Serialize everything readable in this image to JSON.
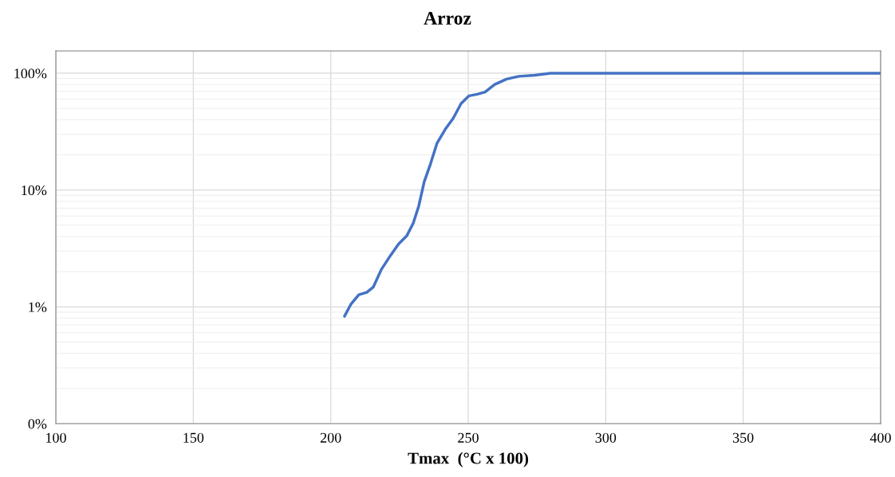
{
  "chart_data": {
    "type": "line",
    "title": "Arroz",
    "xlabel": "Tmax  (°C x 100)",
    "x": [
      205,
      207.3,
      210.2,
      213.1,
      215.5,
      218.4,
      221.8,
      224.7,
      227.6,
      230,
      232,
      234,
      236.3,
      238.6,
      241.6,
      244.5,
      247.4,
      250.3,
      253.2,
      256.1,
      259.6,
      263.9,
      268.3,
      274.1,
      279.9,
      400
    ],
    "series": [
      {
        "color": "#4472c4",
        "values": [
          0.83,
          1.05,
          1.27,
          1.33,
          1.48,
          2.09,
          2.77,
          3.46,
          4.04,
          5.2,
          7.3,
          11.8,
          16.8,
          25,
          33,
          41,
          55,
          64,
          66,
          69,
          80,
          89,
          94,
          96,
          100,
          100
        ]
      }
    ],
    "log": "y",
    "xlim": [
      100,
      400
    ],
    "xticks": [
      100,
      150,
      200,
      250,
      300,
      350,
      400
    ],
    "ylim": [
      0.1,
      155
    ],
    "yticks": [
      {
        "value": 0.1,
        "label": "0%"
      },
      {
        "value": 1,
        "label": "1%"
      },
      {
        "value": 10,
        "label": "10%"
      },
      {
        "value": 100,
        "label": "100%"
      }
    ],
    "grid": true,
    "marker": "none",
    "line_style": "solid"
  }
}
